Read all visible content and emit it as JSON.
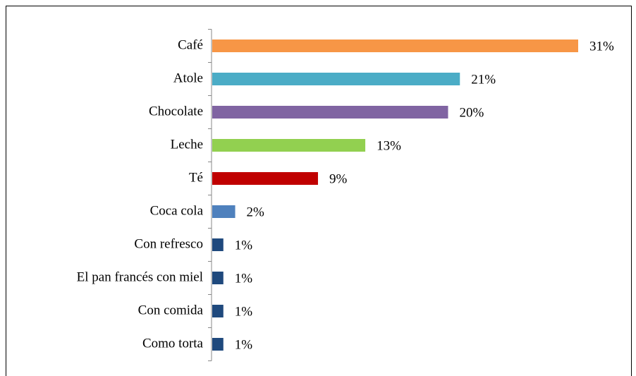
{
  "chart_data": {
    "type": "bar",
    "orientation": "horizontal",
    "categories": [
      "Café",
      "Atole",
      "Chocolate",
      "Leche",
      "Té",
      "Coca cola",
      "Con refresco",
      "El pan francés con miel",
      "Con comida",
      "Como torta"
    ],
    "values": [
      31,
      21,
      20,
      13,
      9,
      2,
      1,
      1,
      1,
      1
    ],
    "value_labels": [
      "31%",
      "21%",
      "20%",
      "13%",
      "9%",
      "2%",
      "1%",
      "1%",
      "1%",
      "1%"
    ],
    "colors": [
      "#f79646",
      "#4bacc6",
      "#8064a2",
      "#92d050",
      "#c00000",
      "#4f81bd",
      "#1f497d",
      "#1f497d",
      "#1f497d",
      "#1f497d"
    ]
  }
}
